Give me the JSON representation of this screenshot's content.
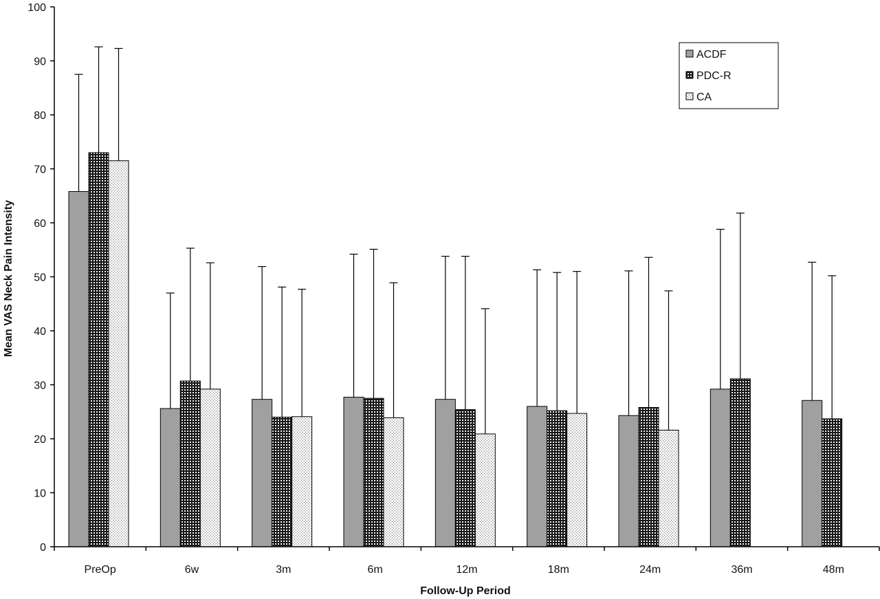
{
  "chart_data": {
    "type": "bar",
    "title": "",
    "xlabel": "Follow-Up Period",
    "ylabel": "Mean VAS Neck Pain Intensity",
    "ylim": [
      0,
      100
    ],
    "yticks": [
      0,
      10,
      20,
      30,
      40,
      50,
      60,
      70,
      80,
      90,
      100
    ],
    "grid": false,
    "legend_position": "top-right",
    "categories": [
      "PreOp",
      "6w",
      "3m",
      "6m",
      "12m",
      "18m",
      "24m",
      "36m",
      "48m"
    ],
    "error_bars": "upper",
    "series": [
      {
        "name": "ACDF",
        "fill": "#a0a0a0",
        "pattern": "solid",
        "values": [
          65.8,
          25.6,
          27.3,
          27.7,
          27.3,
          26.0,
          24.3,
          29.2,
          27.1
        ],
        "error_top": [
          87.5,
          47.0,
          51.9,
          54.2,
          53.8,
          51.3,
          51.1,
          58.8,
          52.7
        ]
      },
      {
        "name": "PDC-R",
        "fill": "#111111",
        "pattern": "checker",
        "values": [
          73.0,
          30.7,
          24.0,
          27.5,
          25.4,
          25.2,
          25.8,
          31.1,
          23.7
        ],
        "error_top": [
          92.6,
          55.3,
          48.1,
          55.1,
          53.8,
          50.8,
          53.6,
          61.8,
          50.2
        ]
      },
      {
        "name": "CA",
        "fill": "#e8e8e8",
        "pattern": "dots",
        "values": [
          71.5,
          29.2,
          24.1,
          23.9,
          20.9,
          24.7,
          21.6,
          null,
          null
        ],
        "error_top": [
          92.3,
          52.6,
          47.7,
          48.9,
          44.1,
          51.0,
          47.4,
          null,
          null
        ]
      }
    ]
  }
}
